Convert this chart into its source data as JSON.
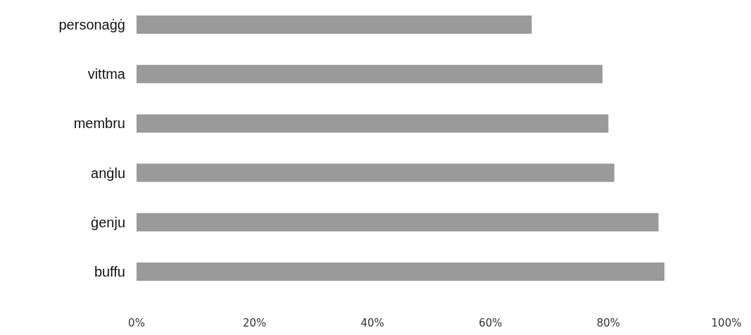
{
  "chart_data": {
    "type": "bar",
    "orientation": "horizontal",
    "categories": [
      "personaġġ",
      "vittma",
      "membru",
      "anġlu",
      "ġenju",
      "buffu"
    ],
    "values": [
      67,
      79,
      80,
      81,
      88.5,
      89.5
    ],
    "color": "#9a9a9a",
    "xlim": [
      0,
      100
    ],
    "xticks": [
      {
        "value": 0,
        "label": "0%"
      },
      {
        "value": 20,
        "label": "20%"
      },
      {
        "value": 40,
        "label": "40%"
      },
      {
        "value": 60,
        "label": "60%"
      },
      {
        "value": 80,
        "label": "80%"
      },
      {
        "value": 100,
        "label": "100%"
      }
    ],
    "grid": false
  }
}
